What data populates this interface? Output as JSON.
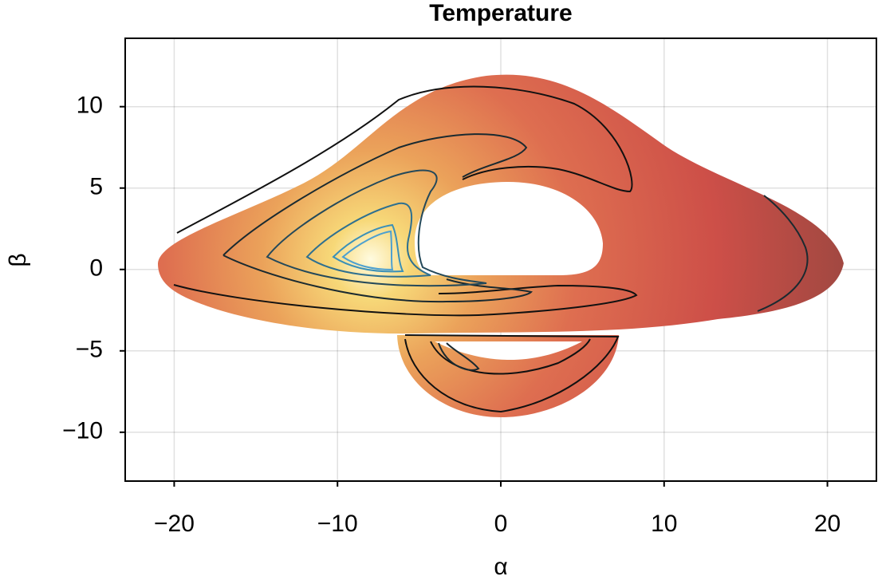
{
  "chart_data": {
    "type": "heatmap",
    "title": "Temperature",
    "xlabel": "α",
    "ylabel": "β",
    "xlim": [
      -23,
      23
    ],
    "ylim": [
      -13,
      14.2
    ],
    "xticks": [
      {
        "value": -20,
        "label": "−20"
      },
      {
        "value": -10,
        "label": "−10"
      },
      0,
      10,
      20
    ],
    "yticks": [
      {
        "value": -10,
        "label": "−10"
      },
      {
        "value": -5,
        "label": "−5"
      },
      0,
      5,
      10
    ],
    "grid": true
  }
}
